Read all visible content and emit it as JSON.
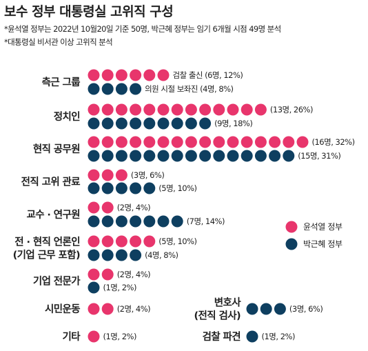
{
  "title": "보수 정부 대통령실 고위직 구성",
  "notes": [
    "*윤석열 정부는 2022년 10월20일 기준 50명, 박근혜 정부는 임기 6개월 시점 49명 분석",
    "*대통령실 비서관 이상 고위직 분석"
  ],
  "chart_data": {
    "type": "dot",
    "title": "보수 정부 대통령실 고위직 구성",
    "series": [
      {
        "name": "윤석열 정부",
        "color": "#e8356c"
      },
      {
        "name": "박근혜 정부",
        "color": "#0e3f60"
      }
    ],
    "legend_position": "right-middle",
    "categories": [
      {
        "label": [
          "측근 그룹"
        ],
        "yoon": 6,
        "park": 4,
        "yoon_label": "검찰 출신 (6명, 12%)",
        "park_label": "의원 시절 보좌진 (4명, 8%)"
      },
      {
        "label": [
          "정치인"
        ],
        "yoon": 13,
        "park": 9,
        "yoon_label": "(13명, 26%)",
        "park_label": "(9명, 18%)"
      },
      {
        "label": [
          "현직 공무원"
        ],
        "yoon": 16,
        "park": 15,
        "yoon_label": "(16명, 32%)",
        "park_label": "(15명, 31%)"
      },
      {
        "label": [
          "전직 고위 관료"
        ],
        "yoon": 3,
        "park": 5,
        "yoon_label": "(3명, 6%)",
        "park_label": "(5명, 10%)"
      },
      {
        "label": [
          "교수 · 연구원"
        ],
        "yoon": 2,
        "park": 7,
        "yoon_label": "(2명, 4%)",
        "park_label": "(7명, 14%)"
      },
      {
        "label": [
          "전 · 현직 언론인",
          "(기업 근무 포함)"
        ],
        "yoon": 5,
        "park": 4,
        "yoon_label": "(5명, 10%)",
        "park_label": "(4명, 8%)"
      },
      {
        "label": [
          "기업 전문가"
        ],
        "yoon": 2,
        "park": 1,
        "yoon_label": "(2명, 4%)",
        "park_label": "(1명, 2%)"
      },
      {
        "label": [
          "시민운동"
        ],
        "yoon": 2,
        "park": 0,
        "yoon_label": "(2명, 4%)",
        "park_label": ""
      },
      {
        "label": [
          "기타"
        ],
        "yoon": 1,
        "park": 0,
        "yoon_label": "(1명, 2%)",
        "park_label": ""
      },
      {
        "label": [
          "변호사",
          "(전직 검사)"
        ],
        "yoon": 0,
        "park": 3,
        "yoon_label": "",
        "park_label": "(3명, 6%)"
      },
      {
        "label": [
          "검찰 파견"
        ],
        "yoon": 0,
        "park": 1,
        "yoon_label": "",
        "park_label": "(1명, 2%)"
      }
    ]
  }
}
